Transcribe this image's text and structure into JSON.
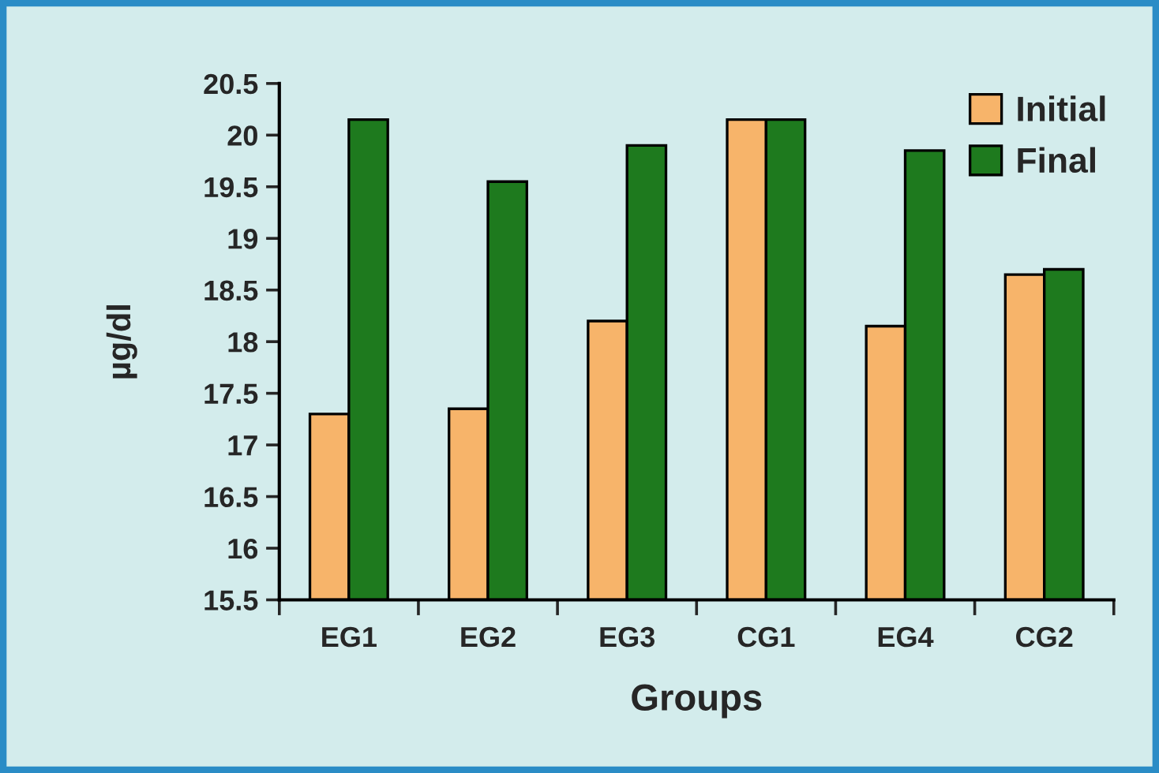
{
  "chart_data": {
    "type": "bar",
    "xlabel": "Groups",
    "ylabel": "µg/dl",
    "categories": [
      "EG1",
      "EG2",
      "EG3",
      "CG1",
      "EG4",
      "CG2"
    ],
    "series": [
      {
        "name": "Initial",
        "color": "#f7b46a",
        "values": [
          17.3,
          17.35,
          18.2,
          20.15,
          18.15,
          18.65
        ]
      },
      {
        "name": "Final",
        "color": "#1e7a1e",
        "values": [
          20.15,
          19.55,
          19.9,
          20.15,
          19.85,
          18.7
        ]
      }
    ],
    "ylim": [
      15.5,
      20.5
    ],
    "yticks": [
      15.5,
      16,
      16.5,
      17,
      17.5,
      18,
      18.5,
      19,
      19.5,
      20,
      20.5
    ],
    "legend": "top right"
  }
}
